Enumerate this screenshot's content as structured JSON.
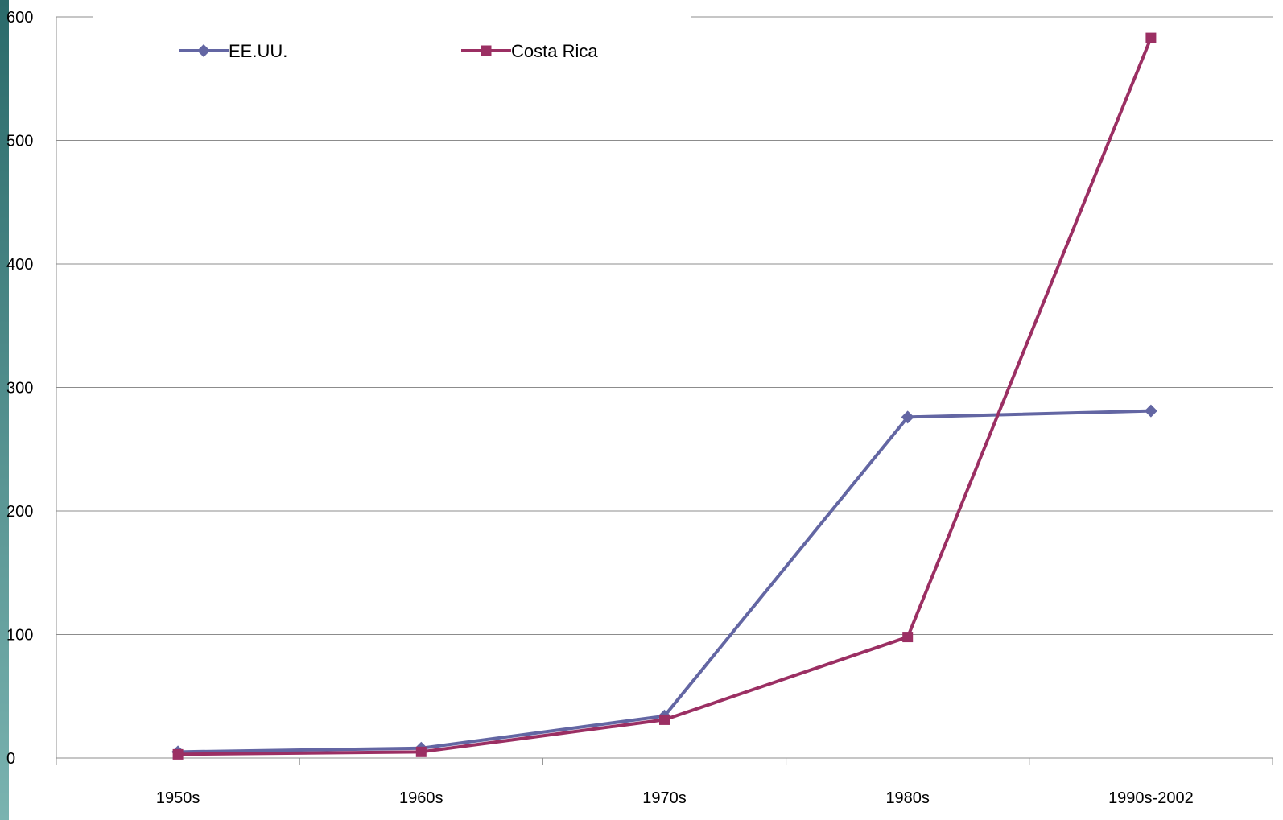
{
  "colors": {
    "sidebar_top": "#2a6a6a",
    "sidebar_bottom": "#7ab3b0",
    "gridline": "#8c8c8c",
    "axis": "#8c8c8c"
  },
  "chart_data": {
    "type": "line",
    "title": "",
    "xlabel": "",
    "ylabel": "",
    "categories": [
      "1950s",
      "1960s",
      "1970s",
      "1980s",
      "1990s-2002"
    ],
    "ylim": [
      0,
      600
    ],
    "yticks": [
      0,
      100,
      200,
      300,
      400,
      500,
      600
    ],
    "grid": true,
    "legend_position": "top",
    "series": [
      {
        "name": "EE.UU.",
        "values": [
          5,
          8,
          34,
          276,
          281
        ],
        "color": "#6366a3",
        "marker": "diamond"
      },
      {
        "name": "Costa Rica",
        "values": [
          3,
          5,
          31,
          98,
          583
        ],
        "color": "#9b2f63",
        "marker": "square"
      }
    ]
  }
}
